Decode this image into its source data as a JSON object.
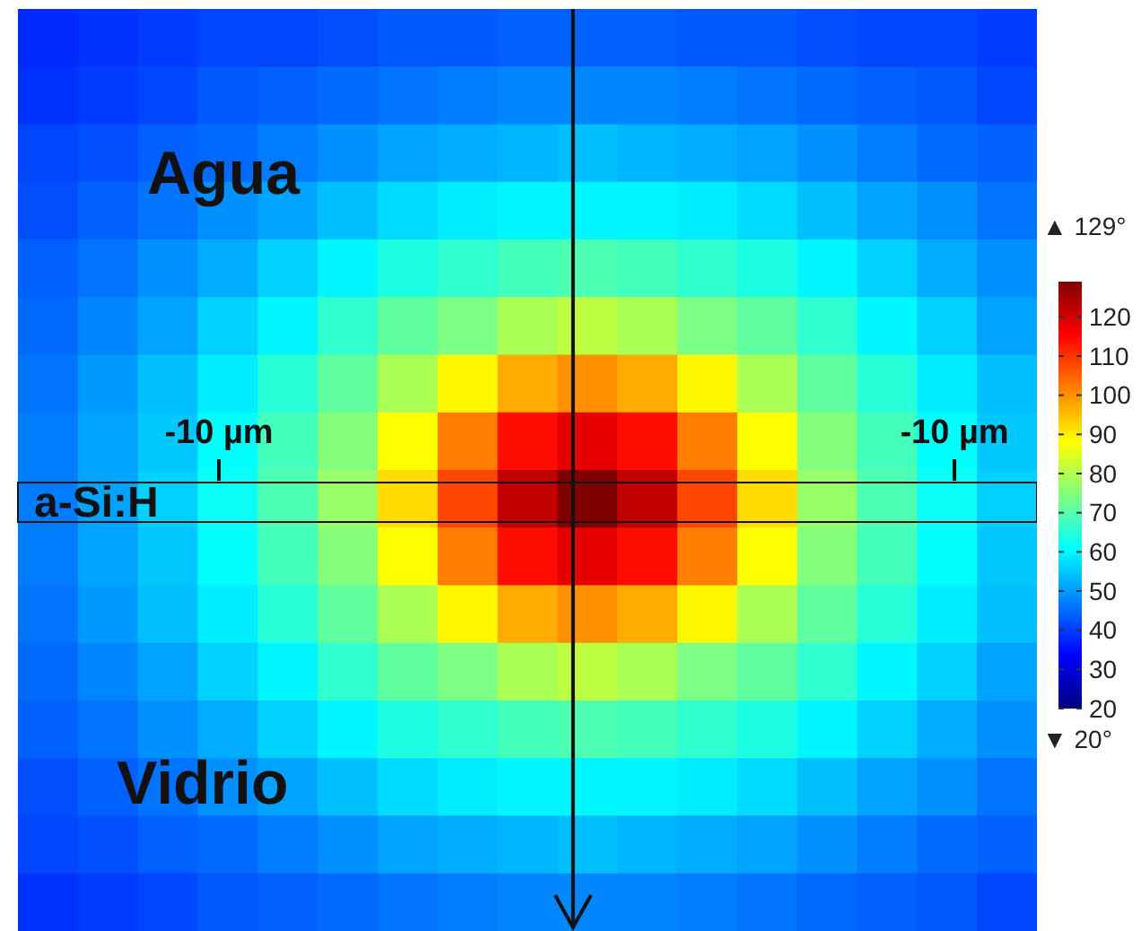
{
  "chart_data": {
    "type": "heatmap",
    "categories": [
      null,
      null,
      null,
      null,
      null,
      null,
      null,
      null,
      null,
      null,
      null,
      null,
      null,
      null,
      null,
      null,
      null
    ],
    "y_categories": [
      null,
      null,
      null,
      null,
      null,
      null,
      null,
      null,
      null,
      null,
      null,
      null,
      null,
      null,
      null,
      null
    ],
    "cells": [
      [
        38,
        39,
        40,
        41,
        41,
        42,
        43,
        43,
        44,
        44,
        44,
        43,
        43,
        42,
        41,
        41,
        40
      ],
      [
        39,
        40,
        41,
        43,
        44,
        45,
        46,
        47,
        48,
        48,
        48,
        47,
        46,
        45,
        44,
        43,
        41
      ],
      [
        41,
        42,
        44,
        45,
        47,
        49,
        51,
        52,
        53,
        54,
        53,
        52,
        51,
        49,
        47,
        45,
        44
      ],
      [
        42,
        44,
        46,
        49,
        51,
        54,
        57,
        59,
        60,
        60,
        60,
        59,
        57,
        54,
        51,
        49,
        46
      ],
      [
        44,
        46,
        49,
        52,
        56,
        60,
        64,
        66,
        68,
        69,
        68,
        66,
        64,
        60,
        56,
        52,
        49
      ],
      [
        45,
        48,
        51,
        56,
        60,
        66,
        71,
        74,
        79,
        81,
        79,
        74,
        71,
        66,
        60,
        56,
        51
      ],
      [
        46,
        50,
        54,
        59,
        65,
        71,
        79,
        89,
        97,
        100,
        97,
        89,
        79,
        71,
        65,
        59,
        54
      ],
      [
        47,
        51,
        55,
        61,
        68,
        75,
        88,
        102,
        114,
        118,
        114,
        102,
        88,
        75,
        68,
        61,
        55
      ],
      [
        47,
        51,
        56,
        62,
        69,
        77,
        92,
        108,
        122,
        129,
        122,
        108,
        92,
        77,
        69,
        62,
        56
      ],
      [
        47,
        51,
        55,
        61,
        68,
        75,
        88,
        102,
        114,
        118,
        114,
        102,
        88,
        75,
        68,
        61,
        55
      ],
      [
        46,
        50,
        54,
        59,
        65,
        71,
        79,
        89,
        97,
        100,
        97,
        89,
        79,
        71,
        65,
        59,
        54
      ],
      [
        45,
        48,
        51,
        56,
        60,
        66,
        71,
        74,
        79,
        81,
        79,
        74,
        71,
        66,
        60,
        56,
        51
      ],
      [
        44,
        46,
        49,
        52,
        56,
        60,
        64,
        66,
        68,
        69,
        68,
        66,
        64,
        60,
        56,
        52,
        49
      ],
      [
        42,
        44,
        46,
        49,
        51,
        54,
        57,
        59,
        60,
        60,
        60,
        59,
        57,
        54,
        51,
        49,
        46
      ],
      [
        41,
        42,
        44,
        45,
        47,
        49,
        51,
        52,
        53,
        54,
        53,
        52,
        51,
        49,
        47,
        45,
        44
      ],
      [
        39,
        40,
        41,
        43,
        44,
        45,
        46,
        47,
        48,
        48,
        48,
        47,
        46,
        45,
        44,
        43,
        41
      ]
    ],
    "clim": [
      20,
      129
    ],
    "cticks": [
      20,
      30,
      40,
      50,
      60,
      70,
      80,
      90,
      100,
      110,
      120
    ],
    "annotations": [
      "Agua",
      "Vidrio",
      "a-Si:H",
      "-10 µm",
      "-10 µm",
      "▲ 129°",
      "▼ 20°"
    ]
  }
}
